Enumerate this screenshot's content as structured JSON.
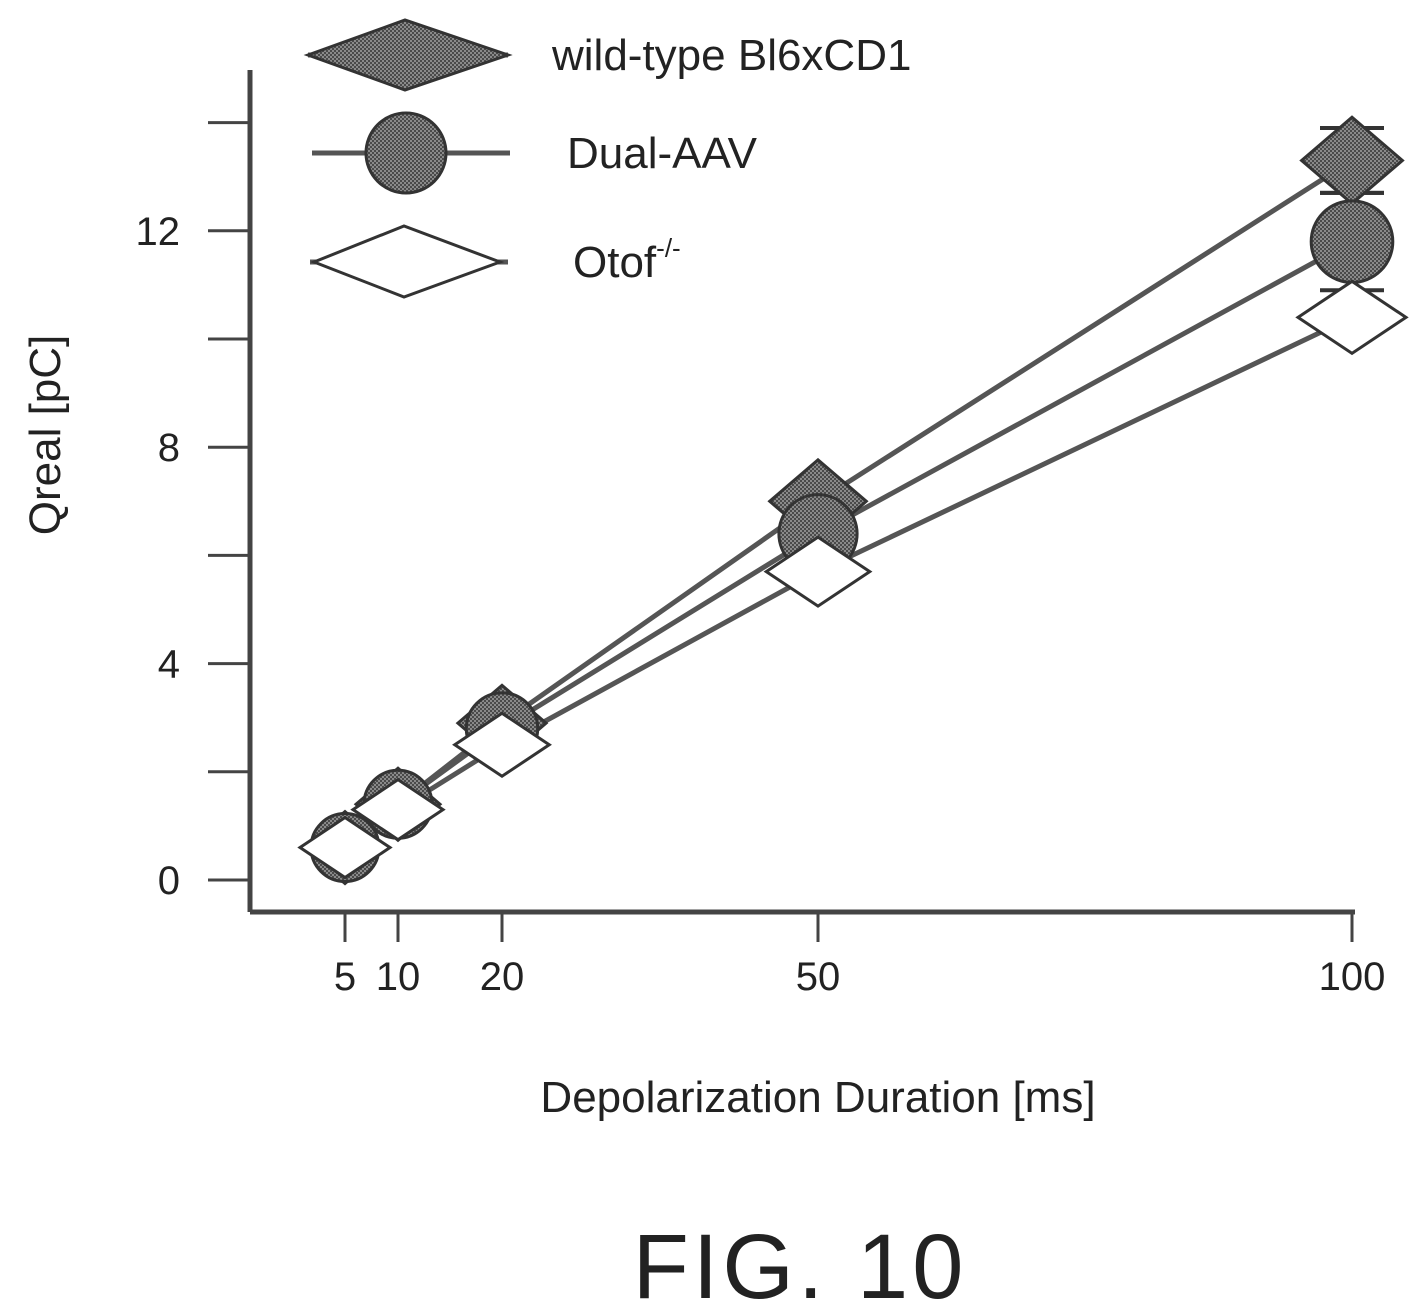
{
  "chart_data": {
    "type": "line",
    "xlabel": "Depolarization Duration [ms]",
    "ylabel": "Qreal [pC]",
    "x": [
      5,
      10,
      20,
      50,
      100
    ],
    "xticks": [
      "5",
      "10",
      "20",
      "50",
      "100"
    ],
    "yticks": [
      "0",
      "4",
      "8",
      "12"
    ],
    "ylim": [
      -0.5,
      14.4
    ],
    "legend_position": "top-left",
    "series": [
      {
        "name": "wild-type Bl6xCD1",
        "marker": "filled-diamond",
        "values": [
          0.6,
          1.4,
          2.9,
          7.0,
          13.3
        ],
        "error_last": 0.6
      },
      {
        "name": "Dual-AAV",
        "marker": "filled-circle",
        "values": [
          0.6,
          1.4,
          2.8,
          6.4,
          11.8
        ],
        "error_last": 0.9
      },
      {
        "name": "Otof",
        "name_sup": "-/-",
        "marker": "open-diamond",
        "values": [
          0.6,
          1.3,
          2.5,
          5.7,
          10.4
        ]
      }
    ],
    "colors": {
      "filled": "#7a7a7a",
      "line": "#555555",
      "open_fill": "#ffffff",
      "outline": "#333333"
    }
  },
  "caption": "FIG. 10"
}
